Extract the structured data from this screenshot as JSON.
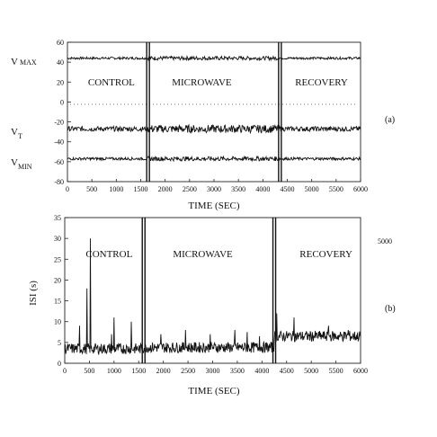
{
  "chart_data": [
    {
      "panel": "a",
      "type": "line",
      "panel_tag": "(a)",
      "xlabel": "TIME (SEC)",
      "xlim": [
        0,
        6000
      ],
      "ylim": [
        -80,
        60
      ],
      "x_ticks": [
        0,
        500,
        1000,
        1500,
        2000,
        2500,
        3000,
        3500,
        4000,
        4500,
        5000,
        5500,
        6000
      ],
      "y_ticks": [
        60,
        40,
        20,
        0,
        -20,
        -40,
        -60,
        -80
      ],
      "y_tick_labels": [
        "60",
        "40",
        "20",
        "0",
        "-20",
        "-40",
        "-60",
        "-80"
      ],
      "phase_boundaries": [
        1650,
        4350
      ],
      "phases": [
        {
          "label": "CONTROL",
          "x": 900
        },
        {
          "label": "MICROWAVE",
          "x": 2750
        },
        {
          "label": "RECOVERY",
          "x": 5200
        }
      ],
      "series": [
        {
          "name": "V MAX",
          "baseline": 44,
          "noise": 1.2
        },
        {
          "name": "V T",
          "baseline": -27,
          "noise": 2.5
        },
        {
          "name": "V MIN",
          "baseline": -57,
          "noise": 1.4
        }
      ],
      "side_labels": [
        {
          "main": "V",
          "sub": "MAX",
          "subscript": false
        },
        {
          "main": "V",
          "sub": "T",
          "subscript": true
        },
        {
          "main": "V",
          "sub": "MIN",
          "subscript": true
        }
      ],
      "grid": false
    },
    {
      "panel": "b",
      "type": "line",
      "panel_tag": "(b)",
      "xlabel": "TIME (SEC)",
      "ylabel": "ISI (s)",
      "xlim": [
        0,
        6000
      ],
      "ylim": [
        0,
        35
      ],
      "x_ticks": [
        0,
        500,
        1000,
        1500,
        2000,
        2500,
        3000,
        3500,
        4000,
        4500,
        5000,
        5500,
        6000
      ],
      "y_ticks": [
        0,
        5,
        10,
        15,
        20,
        25,
        30,
        35
      ],
      "y_tick_labels": [
        "0",
        "5",
        "10",
        "15",
        "20",
        "25",
        "30",
        "35"
      ],
      "phase_boundaries": [
        1600,
        4250
      ],
      "phases": [
        {
          "label": "CONTROL",
          "x": 900
        },
        {
          "label": "MICROWAVE",
          "x": 2800
        },
        {
          "label": "RECOVERY",
          "x": 5300
        }
      ],
      "right_annotation": "5000",
      "series": [
        {
          "name": "ISI",
          "baseline_segments": [
            [
              0,
              3.5
            ],
            [
              1600,
              3.8
            ],
            [
              4250,
              6.5
            ]
          ],
          "spikes": [
            [
              300,
              9
            ],
            [
              450,
              18
            ],
            [
              520,
              30
            ],
            [
              950,
              7
            ],
            [
              1000,
              11
            ],
            [
              1350,
              10
            ],
            [
              1950,
              7
            ],
            [
              2450,
              8
            ],
            [
              2950,
              7
            ],
            [
              3450,
              8
            ],
            [
              3700,
              7.5
            ],
            [
              3950,
              6.5
            ],
            [
              4300,
              12
            ],
            [
              4650,
              11
            ],
            [
              5350,
              9
            ],
            [
              5750,
              8
            ]
          ]
        }
      ],
      "grid": false
    }
  ]
}
